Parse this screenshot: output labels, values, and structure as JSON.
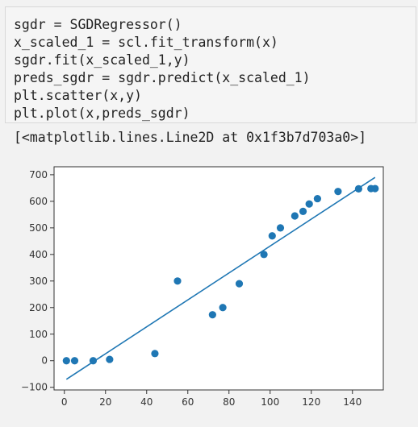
{
  "code_cell": {
    "lines": [
      "sgdr = SGDRegressor()",
      "x_scaled_1 = scl.fit_transform(x)",
      "sgdr.fit(x_scaled_1,y)",
      "preds_sgdr = sgdr.predict(x_scaled_1)",
      "plt.scatter(x,y)",
      "plt.plot(x,preds_sgdr)"
    ]
  },
  "output": {
    "text": "[<matplotlib.lines.Line2D at 0x1f3b7d703a0>]"
  },
  "colors": {
    "series": "#1f77b4",
    "plot_bg": "#ffffff",
    "page_bg": "#f2f2f2"
  },
  "chart_data": {
    "type": "scatter",
    "title": "",
    "xlabel": "",
    "ylabel": "",
    "xlim": [
      -5,
      155
    ],
    "ylim": [
      -110,
      730
    ],
    "grid": false,
    "xticks": [
      0,
      20,
      40,
      60,
      80,
      100,
      120,
      140
    ],
    "yticks": [
      -100,
      0,
      100,
      200,
      300,
      400,
      500,
      600,
      700
    ],
    "series": [
      {
        "type": "scatter",
        "x": [
          1,
          5,
          14,
          22,
          44,
          55,
          72,
          77,
          85,
          97,
          101,
          105,
          112,
          116,
          119,
          123,
          133,
          143,
          149,
          151
        ],
        "y": [
          0,
          0,
          0,
          5,
          27,
          300,
          173,
          200,
          290,
          400,
          470,
          500,
          545,
          562,
          590,
          610,
          637,
          647,
          648,
          648
        ]
      },
      {
        "type": "line",
        "x": [
          1,
          151
        ],
        "y": [
          -70,
          690
        ]
      }
    ]
  }
}
